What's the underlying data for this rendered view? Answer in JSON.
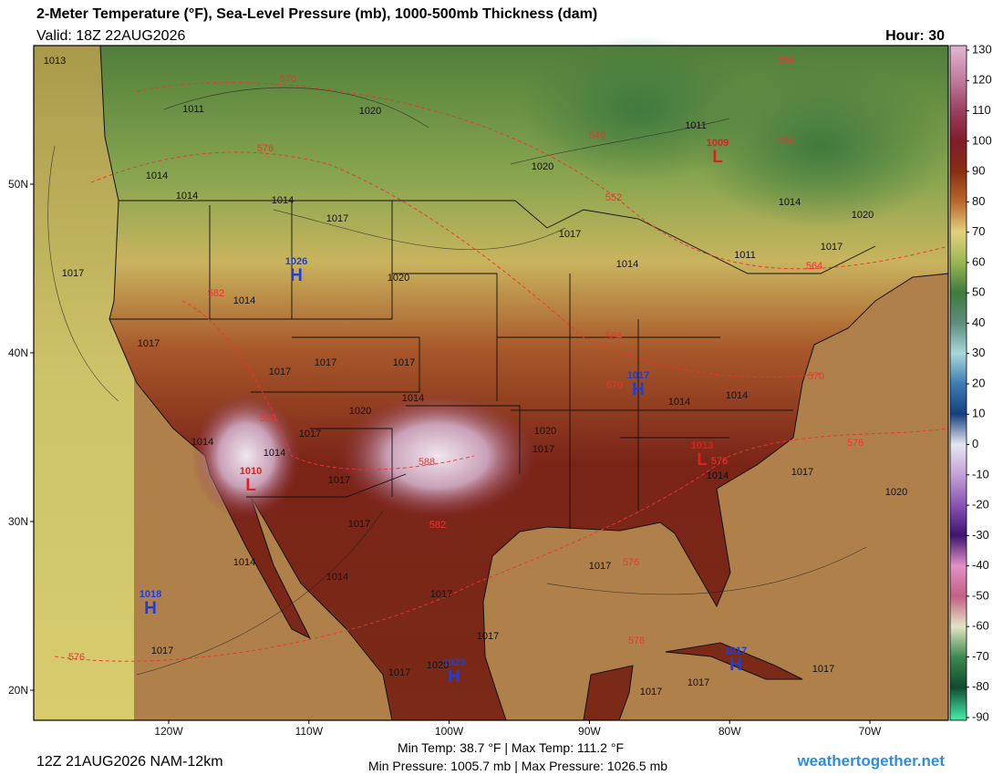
{
  "header": {
    "title": "2-Meter Temperature (°F), Sea-Level Pressure (mb), 1000-500mb Thickness (dam)",
    "valid": "Valid: 18Z 22AUG2026",
    "hour": "Hour: 30"
  },
  "footer": {
    "run": "12Z 21AUG2026 NAM-12km",
    "temp_stats": "Min Temp:  38.7 °F | Max Temp: 111.2 °F",
    "pressure_stats": "Min Pressure: 1005.7 mb | Max Pressure: 1026.5 mb",
    "site": "weathertogether.net"
  },
  "map": {
    "lat_ticks": [
      {
        "value": 50,
        "label": "50N"
      },
      {
        "value": 40,
        "label": "40N"
      },
      {
        "value": 30,
        "label": "30N"
      },
      {
        "value": 20,
        "label": "20N"
      }
    ],
    "lon_ticks": [
      {
        "value": -120,
        "label": "120W"
      },
      {
        "value": -110,
        "label": "110W"
      },
      {
        "value": -100,
        "label": "100W"
      },
      {
        "value": -90,
        "label": "90W"
      },
      {
        "value": -80,
        "label": "80W"
      },
      {
        "value": -70,
        "label": "70W"
      }
    ],
    "pressure_centers": [
      {
        "kind": "H",
        "value": 1026
      },
      {
        "kind": "H",
        "value": 1018
      },
      {
        "kind": "H",
        "value": 1017
      },
      {
        "kind": "H",
        "value": 1023
      },
      {
        "kind": "H",
        "value": 1017
      },
      {
        "kind": "L",
        "value": 1009
      },
      {
        "kind": "L",
        "value": 1010
      },
      {
        "kind": "L",
        "value": 1013
      }
    ],
    "isobar_labels": [
      1013,
      1011,
      1020,
      1014,
      1014,
      1014,
      1017,
      1017,
      1014,
      1020,
      1017,
      1017,
      1017,
      1017,
      1014,
      1020,
      1017,
      1014,
      1014,
      1017,
      1017,
      1014,
      1014,
      1017,
      1017,
      1017,
      1020,
      1017,
      1020,
      1017,
      1014,
      1011,
      1014,
      1020,
      1017,
      1011,
      1014,
      1014,
      1020,
      1017,
      1014,
      1017,
      1020,
      1017,
      1017,
      1017,
      1017
    ],
    "thickness_labels": [
      570,
      576,
      546,
      552,
      558,
      558,
      582,
      564,
      564,
      570,
      576,
      576,
      588,
      588,
      582,
      576,
      576,
      576,
      570
    ]
  },
  "colorbar": {
    "ticks": [
      130,
      120,
      110,
      100,
      90,
      80,
      70,
      60,
      50,
      40,
      30,
      20,
      10,
      0,
      -10,
      -20,
      -30,
      -40,
      -50,
      -60,
      -70,
      -80,
      -90
    ],
    "colors": [
      "#dcb0cc",
      "#c07a9a",
      "#9a4060",
      "#821c2a",
      "#8a2e12",
      "#b8682e",
      "#e2d27e",
      "#98b652",
      "#3f7a3e",
      "#5e8e7e",
      "#a8d8d8",
      "#3c7cb2",
      "#17407e",
      "#e6e6f2",
      "#c2a2d6",
      "#8a52b4",
      "#3e1470",
      "#e292c4",
      "#c26084",
      "#e4e4c4",
      "#3e8a50",
      "#0e4a30",
      "#44e2a2"
    ]
  }
}
